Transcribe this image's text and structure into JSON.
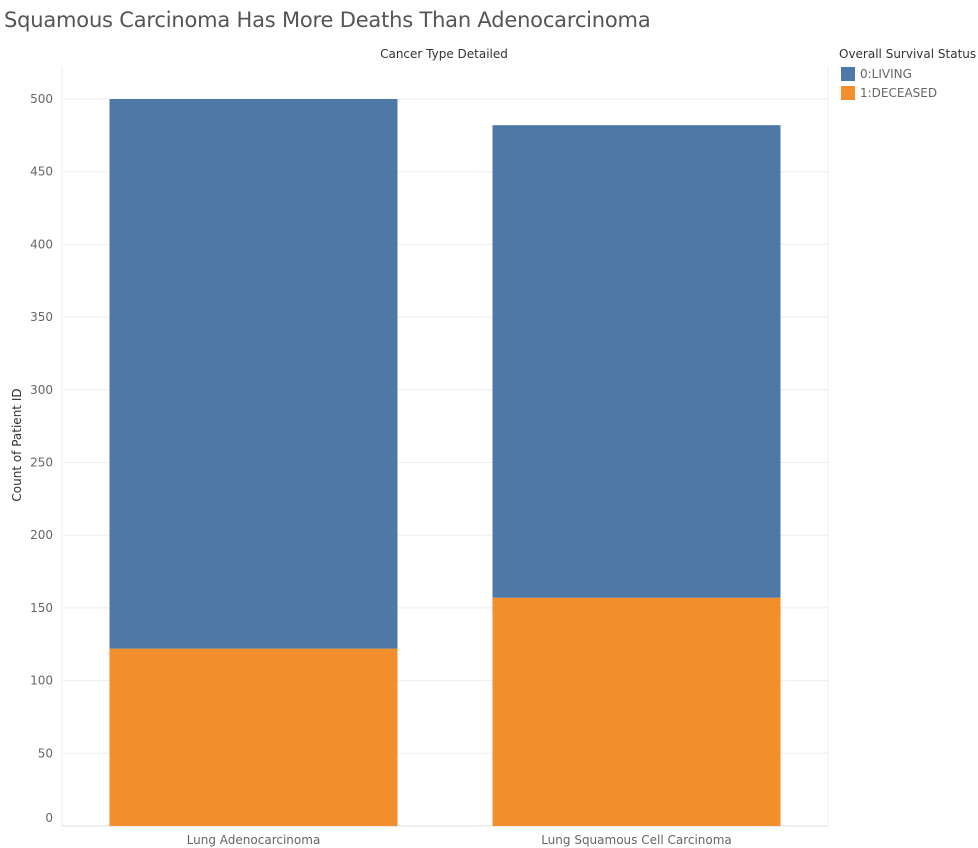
{
  "chart_data": {
    "type": "bar",
    "stacked": true,
    "title": "Squamous Carcinoma Has More Deaths Than Adenocarcinoma",
    "column_header": "Cancer Type Detailed",
    "ylabel": "Count of Patient ID",
    "xlabel": "",
    "ylim": [
      0,
      525
    ],
    "yticks": [
      0,
      50,
      100,
      150,
      200,
      250,
      300,
      350,
      400,
      450,
      500
    ],
    "grid": true,
    "legend_title": "Overall Survival Status",
    "legend_position": "top-right",
    "categories": [
      "Lung Adenocarcinoma",
      "Lung Squamous Cell Carcinoma"
    ],
    "series": [
      {
        "name": "1:DECEASED",
        "color": "#F28E2B",
        "values": [
          122,
          157
        ]
      },
      {
        "name": "0:LIVING",
        "color": "#4E79A7",
        "values": [
          378,
          325
        ]
      }
    ],
    "legend_items": [
      {
        "label": "0:LIVING",
        "color": "#4E79A7"
      },
      {
        "label": "1:DECEASED",
        "color": "#F28E2B"
      }
    ]
  }
}
